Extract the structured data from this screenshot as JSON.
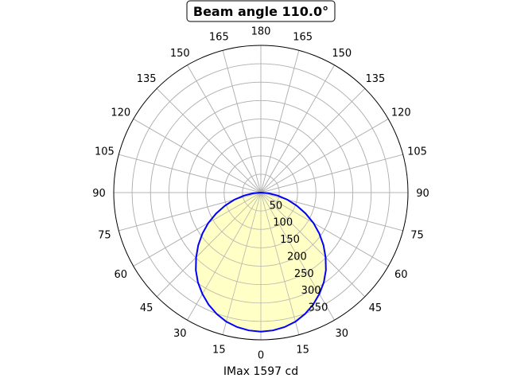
{
  "chart_data": {
    "type": "polar-line",
    "title": "Beam angle 110.0°",
    "xlabel": "IMax 1597 cd",
    "angle_tick_labels": [
      "0",
      "15",
      "30",
      "45",
      "60",
      "75",
      "90",
      "105",
      "120",
      "135",
      "150",
      "165",
      "180",
      "165",
      "150",
      "135",
      "120",
      "105",
      "90",
      "75",
      "60",
      "45",
      "30",
      "15"
    ],
    "radial_tick_labels": [
      "50",
      "100",
      "150",
      "200",
      "250",
      "300",
      "350"
    ],
    "radial_ticks": [
      50,
      100,
      150,
      200,
      250,
      300,
      350
    ],
    "rlim": [
      0,
      400
    ],
    "grid": true,
    "series": [
      {
        "angles_deg": [
          0,
          5,
          10,
          15,
          20,
          25,
          30,
          35,
          40,
          45,
          50,
          55,
          60,
          65,
          70,
          75,
          80,
          85,
          90
        ],
        "values": [
          378,
          376,
          371,
          363,
          351,
          336,
          318,
          298,
          275,
          249,
          222,
          194,
          165,
          134,
          104,
          75,
          46,
          20,
          0
        ],
        "symmetric": true,
        "line_color": "#0000ff",
        "fill_color": "#ffffc0"
      }
    ]
  }
}
